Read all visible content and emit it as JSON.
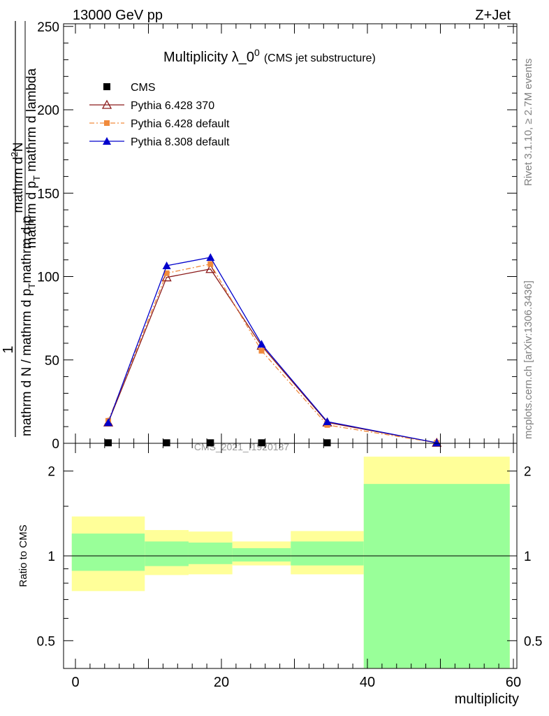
{
  "header": {
    "energy_label": "13000 GeV pp",
    "process_label": "Z+Jet"
  },
  "side_labels": {
    "rivet": "Rivet 3.1.10, ≥ 2.7M events",
    "mcplots": "mcplots.cern.ch [arXiv:1306.3436]"
  },
  "chart_data": [
    {
      "type": "line",
      "title": "Multiplicity λ_0",
      "title_sup": "0",
      "subtitle": "(CMS jet substructure)",
      "watermark": "CMS_2021_I1920187",
      "ylabel_numerator": "1",
      "ylabel_denominator": "mathrm d N / mathrm d p",
      "ylabel_sub_T": "T",
      "ylabel_numerator2": "mathrm d",
      "ylabel_sup_2": "2",
      "ylabel_N": "N",
      "ylabel_denominator2": "mathrm d p",
      "ylabel_denominator2_rest": " mathrm d lambda",
      "ylim": [
        0,
        252
      ],
      "yticks": [
        "0",
        "50",
        "100",
        "150",
        "200",
        "250"
      ],
      "legend_position": "top-left",
      "series": [
        {
          "name": "CMS",
          "color": "#000000",
          "marker": "square",
          "x": [
            4.5,
            12.5,
            18.5,
            25.5,
            34.5
          ],
          "y": [
            0.3,
            0.3,
            0.3,
            0.3,
            0.3
          ]
        },
        {
          "name": "Pythia 6.428 370",
          "color": "#8b1a1a",
          "marker": "open-triangle",
          "x": [
            4.5,
            12.5,
            18.5,
            25.5,
            34.5,
            49.5
          ],
          "y": [
            12.5,
            99.5,
            104.5,
            58.5,
            12.5,
            0.3
          ]
        },
        {
          "name": "Pythia 6.428 default",
          "color": "#f08a3c",
          "marker": "filled-square",
          "dash": "dash-dot",
          "x": [
            4.5,
            12.5,
            18.5,
            25.5,
            34.5,
            49.5
          ],
          "y": [
            13.5,
            102.0,
            107.5,
            55.5,
            11.0,
            0.3
          ]
        },
        {
          "name": "Pythia 8.308 default",
          "color": "#0000cc",
          "marker": "filled-triangle",
          "x": [
            4.5,
            12.5,
            18.5,
            25.5,
            34.5,
            49.5
          ],
          "y": [
            12.5,
            106.5,
            111.5,
            59.5,
            13.0,
            0.3
          ]
        }
      ]
    },
    {
      "type": "area",
      "ylabel": "Ratio to CMS",
      "xlabel": "multiplicity",
      "xlim": [
        -1,
        60
      ],
      "ylim": [
        0.4,
        2.25
      ],
      "yticks": [
        "0.5",
        "1",
        "2"
      ],
      "xticks": [
        "0",
        "20",
        "40",
        "60"
      ],
      "reference_line": 1,
      "bands": {
        "outer_color": "#ffff99",
        "inner_color": "#99ff99",
        "bins": [
          {
            "xlo": -0.5,
            "xhi": 9.5,
            "outer": [
              0.75,
              1.38
            ],
            "inner": [
              0.885,
              1.2
            ]
          },
          {
            "xlo": 9.5,
            "xhi": 15.5,
            "outer": [
              0.855,
              1.235
            ],
            "inner": [
              0.92,
              1.125
            ]
          },
          {
            "xlo": 15.5,
            "xhi": 21.5,
            "outer": [
              0.86,
              1.22
            ],
            "inner": [
              0.935,
              1.115
            ]
          },
          {
            "xlo": 21.5,
            "xhi": 29.5,
            "outer": [
              0.925,
              1.125
            ],
            "inner": [
              0.955,
              1.065
            ]
          },
          {
            "xlo": 29.5,
            "xhi": 39.5,
            "outer": [
              0.86,
              1.225
            ],
            "inner": [
              0.925,
              1.125
            ]
          },
          {
            "xlo": 39.5,
            "xhi": 59.5,
            "outer": [
              0.4,
              2.25
            ],
            "inner": [
              0.4,
              1.8
            ]
          }
        ]
      }
    }
  ]
}
